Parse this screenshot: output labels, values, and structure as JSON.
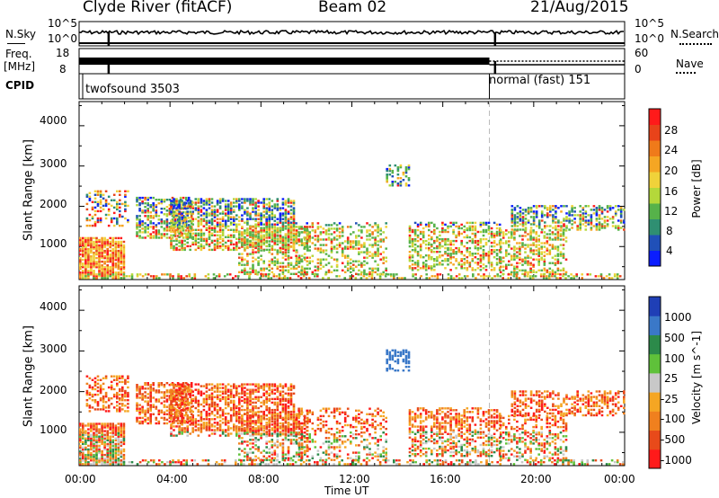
{
  "header": {
    "station": "Clyde River (fitACF)",
    "beam": "Beam 02",
    "date": "21/Aug/2015"
  },
  "panels": {
    "nsky_label": "N.Sky",
    "nsearch_label": "N.Search",
    "freq_label_line1": "Freq.",
    "freq_label_line2": "[MHz]",
    "nave_label": "Nave",
    "cpid_label": "CPID",
    "nsky_ticks": [
      "10^5",
      "10^0"
    ],
    "nsearch_ticks": [
      "10^5",
      "10^0"
    ],
    "freq_ticks": [
      "18",
      "8"
    ],
    "nave_ticks": [
      "60",
      "0"
    ],
    "cpid_segments": [
      {
        "label": "twofsound 3503",
        "start_hour": 0.0,
        "end_hour": 18.05
      },
      {
        "label": "normal (fast) 151",
        "start_hour": 18.05,
        "end_hour": 24.0
      }
    ]
  },
  "chart_data": [
    {
      "type": "heatmap",
      "title": "Power",
      "ylabel": "Slant Range [km]",
      "ylim": [
        180,
        4600
      ],
      "yticks": [
        "4000",
        "3000",
        "2000",
        "1000"
      ],
      "xlim": [
        0,
        24
      ],
      "colorbar": {
        "label": "Power [dB]",
        "ticks": [
          "28",
          "24",
          "20",
          "16",
          "12",
          "8",
          "4"
        ],
        "range": [
          0,
          32
        ],
        "colors": [
          "#0b1dff",
          "#2050b8",
          "#2f8f72",
          "#56b24a",
          "#b4d83a",
          "#f0d23a",
          "#f5a623",
          "#ef7a1a",
          "#e8431a",
          "#ff1a1a"
        ]
      }
    },
    {
      "type": "heatmap",
      "title": "Velocity",
      "ylabel": "Slant Range [km]",
      "ylim": [
        180,
        4600
      ],
      "yticks": [
        "4000",
        "3000",
        "2000",
        "1000"
      ],
      "xlim": [
        0,
        24
      ],
      "xticks": [
        "00:00",
        "04:00",
        "08:00",
        "12:00",
        "16:00",
        "20:00",
        "00:00"
      ],
      "xlabel": "Time UT",
      "colorbar": {
        "label": "Velocity [m s^-1]",
        "ticks": [
          "1000",
          "500",
          "100",
          "25",
          "-25",
          "-100",
          "-500",
          "-1000"
        ],
        "colors": [
          "#1f3fb6",
          "#3a78c8",
          "#2c8a4a",
          "#5fc13a",
          "#c8c8c8",
          "#f5a623",
          "#f0801e",
          "#e84a1a",
          "#ff1a1a"
        ]
      }
    }
  ]
}
